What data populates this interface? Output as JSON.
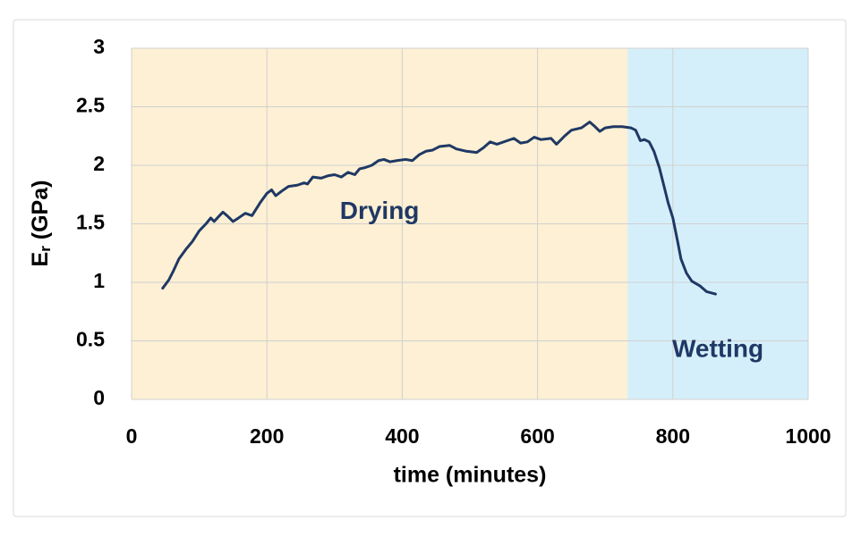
{
  "chart_data": {
    "type": "line",
    "xlabel": "time (minutes)",
    "ylabel": [
      "E",
      "r",
      " (GPa)"
    ],
    "xlim": [
      0,
      1000
    ],
    "xticks": [
      0,
      200,
      400,
      600,
      800,
      1000
    ],
    "ylim": [
      0,
      3
    ],
    "yticks": [
      0,
      0.5,
      1,
      1.5,
      2,
      2.5,
      3
    ],
    "grid": true,
    "regions": [
      {
        "label": "Drying",
        "start": 0,
        "end": 733,
        "color": "#fdf0d4"
      },
      {
        "label": "Wetting",
        "start": 733,
        "end": 1000,
        "color": "#d5effa"
      }
    ],
    "series": [
      {
        "color": "#1f3864",
        "x": [
          46,
          55,
          62,
          70,
          80,
          90,
          100,
          110,
          117,
          122,
          130,
          135,
          143,
          150,
          158,
          168,
          178,
          190,
          200,
          207,
          213,
          222,
          232,
          245,
          255,
          260,
          268,
          280,
          290,
          300,
          310,
          320,
          330,
          337,
          345,
          355,
          365,
          373,
          382,
          392,
          405,
          415,
          425,
          435,
          445,
          455,
          470,
          480,
          495,
          510,
          520,
          530,
          540,
          555,
          565,
          575,
          585,
          595,
          605,
          620,
          628,
          640,
          650,
          665,
          677,
          685,
          692,
          700,
          712,
          725,
          738,
          745,
          752,
          758,
          765,
          772,
          780,
          787,
          793,
          800,
          807,
          812,
          820,
          828,
          840,
          850,
          863
        ],
        "values": [
          0.95,
          1.02,
          1.1,
          1.2,
          1.28,
          1.35,
          1.44,
          1.5,
          1.55,
          1.52,
          1.57,
          1.6,
          1.56,
          1.52,
          1.55,
          1.59,
          1.57,
          1.68,
          1.76,
          1.79,
          1.74,
          1.78,
          1.82,
          1.83,
          1.85,
          1.84,
          1.9,
          1.89,
          1.91,
          1.92,
          1.9,
          1.94,
          1.92,
          1.97,
          1.98,
          2.0,
          2.04,
          2.05,
          2.03,
          2.04,
          2.05,
          2.04,
          2.09,
          2.12,
          2.13,
          2.16,
          2.17,
          2.14,
          2.12,
          2.11,
          2.15,
          2.2,
          2.18,
          2.21,
          2.23,
          2.19,
          2.2,
          2.24,
          2.22,
          2.23,
          2.18,
          2.25,
          2.3,
          2.32,
          2.37,
          2.33,
          2.29,
          2.32,
          2.33,
          2.33,
          2.32,
          2.3,
          2.21,
          2.22,
          2.2,
          2.12,
          1.98,
          1.82,
          1.68,
          1.55,
          1.35,
          1.2,
          1.08,
          1.01,
          0.97,
          0.92,
          0.9
        ]
      }
    ]
  }
}
